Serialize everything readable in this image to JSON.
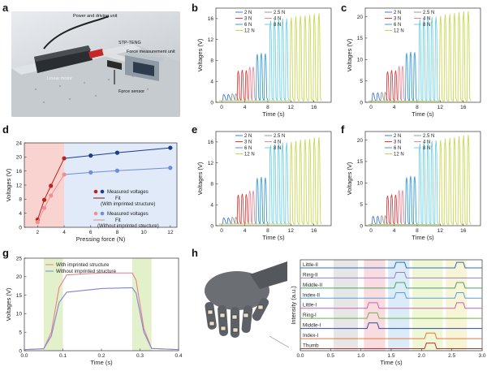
{
  "labels": {
    "a": "a",
    "b": "b",
    "c": "c",
    "d": "d",
    "e": "e",
    "f": "f",
    "g": "g",
    "h": "h"
  },
  "panel_a": {
    "power_label": "Power and driving unit",
    "motor_label": "Linear motor",
    "sensor_label": "STP-TENG",
    "measure_label": "Force measurement unit",
    "force_label": "Force sensor"
  },
  "colors": {
    "2N": "#4a7bd0",
    "2.5N": "#999999",
    "3N": "#d84040",
    "4N": "#e58a9c",
    "6N": "#3a9bd5",
    "8N": "#6fd0e6",
    "12N": "#c8d850"
  },
  "legend_b": [
    "2 N",
    "2.5 N",
    "3 N",
    "4 N",
    "6 N",
    "8 N",
    "12 N"
  ],
  "legend_g": [
    "With imprinted structure",
    "Without imprinted structure"
  ],
  "legend_d": [
    "Measured voltages",
    "Fit",
    "(With imprinted structure)",
    "Measured voltages",
    "Fit",
    "(Without imprinted structure)"
  ],
  "chart_data": [
    {
      "id": "b",
      "type": "line",
      "title": "",
      "xlabel": "Time (s)",
      "ylabel": "Voltages (V)",
      "xlim": [
        -1,
        19
      ],
      "ylim": [
        0,
        18
      ],
      "xticks": [
        0,
        4,
        8,
        12,
        16
      ],
      "yticks": [
        0,
        4,
        8,
        12,
        16
      ],
      "series": [
        {
          "name": "2 N",
          "color": "#4a7bd0",
          "x": [
            0.5,
            1.3
          ],
          "y": [
            1.5,
            1.5
          ]
        },
        {
          "name": "2.5 N",
          "color": "#999999",
          "x": [
            2.0,
            2.6
          ],
          "y": [
            1.6,
            1.6
          ]
        },
        {
          "name": "3 N",
          "color": "#d84040",
          "x": [
            3.0,
            3.7,
            4.4
          ],
          "y": [
            6,
            6.2,
            6.1
          ]
        },
        {
          "name": "4 N",
          "color": "#e58a9c",
          "x": [
            5.0,
            5.6
          ],
          "y": [
            6.8,
            6.8
          ]
        },
        {
          "name": "6 N",
          "color": "#3a9bd5",
          "x": [
            6.3,
            7.0,
            7.7
          ],
          "y": [
            9.2,
            9.4,
            9.3
          ]
        },
        {
          "name": "8 N",
          "color": "#6fd0e6",
          "x": [
            8.6,
            9.3,
            10.0,
            10.7,
            11.4
          ],
          "y": [
            15.6,
            15.8,
            15.9,
            16.0,
            16.0
          ]
        },
        {
          "name": "12 N",
          "color": "#c8d850",
          "x": [
            12.2,
            13.0,
            13.8,
            14.6,
            15.4,
            16.2,
            17.0
          ],
          "y": [
            16.2,
            16.4,
            16.5,
            16.6,
            16.7,
            16.9,
            17.0
          ]
        }
      ]
    },
    {
      "id": "c",
      "type": "line",
      "title": "",
      "xlabel": "Time (s)",
      "ylabel": "Voltages (V)",
      "xlim": [
        -1,
        19
      ],
      "ylim": [
        0,
        22
      ],
      "xticks": [
        0,
        4,
        8,
        12,
        16
      ],
      "yticks": [
        0,
        5,
        10,
        15,
        20
      ],
      "series": [
        {
          "name": "2 N",
          "color": "#4a7bd0",
          "x": [
            0.5,
            1.3
          ],
          "y": [
            2.2,
            2.2
          ]
        },
        {
          "name": "2.5 N",
          "color": "#999999",
          "x": [
            2.0,
            2.6
          ],
          "y": [
            2.3,
            2.3
          ]
        },
        {
          "name": "3 N",
          "color": "#d84040",
          "x": [
            3.0,
            3.7,
            4.4
          ],
          "y": [
            7.2,
            7.5,
            7.4
          ]
        },
        {
          "name": "4 N",
          "color": "#e58a9c",
          "x": [
            5.0,
            5.6
          ],
          "y": [
            8.5,
            8.5
          ]
        },
        {
          "name": "6 N",
          "color": "#3a9bd5",
          "x": [
            6.3,
            7.0,
            7.7
          ],
          "y": [
            11.5,
            11.8,
            11.7
          ]
        },
        {
          "name": "8 N",
          "color": "#6fd0e6",
          "x": [
            8.6,
            9.3,
            10.0,
            10.7,
            11.4
          ],
          "y": [
            19.4,
            19.6,
            19.8,
            19.9,
            20.0
          ]
        },
        {
          "name": "12 N",
          "color": "#c8d850",
          "x": [
            12.2,
            13.0,
            13.8,
            14.6,
            15.4,
            16.2,
            17.0
          ],
          "y": [
            20.2,
            20.5,
            20.6,
            20.8,
            21.0,
            21.2,
            21.3
          ]
        }
      ]
    },
    {
      "id": "e",
      "type": "line",
      "title": "",
      "xlabel": "Time (s)",
      "ylabel": "Voltages (V)",
      "xlim": [
        -1,
        19
      ],
      "ylim": [
        0,
        18
      ],
      "xticks": [
        0,
        4,
        8,
        12,
        16
      ],
      "yticks": [
        0,
        4,
        8,
        12,
        16
      ],
      "series": [
        {
          "name": "2 N",
          "color": "#4a7bd0",
          "x": [
            0.5,
            1.3
          ],
          "y": [
            1.5,
            1.5
          ]
        },
        {
          "name": "2.5 N",
          "color": "#999999",
          "x": [
            2.0,
            2.6
          ],
          "y": [
            1.6,
            1.6
          ]
        },
        {
          "name": "3 N",
          "color": "#d84040",
          "x": [
            3.0,
            3.7,
            4.4
          ],
          "y": [
            5.9,
            6.1,
            6.0
          ]
        },
        {
          "name": "4 N",
          "color": "#e58a9c",
          "x": [
            5.0,
            5.6
          ],
          "y": [
            6.7,
            6.7
          ]
        },
        {
          "name": "6 N",
          "color": "#3a9bd5",
          "x": [
            6.3,
            7.0,
            7.7
          ],
          "y": [
            9.1,
            9.3,
            9.2
          ]
        },
        {
          "name": "8 N",
          "color": "#6fd0e6",
          "x": [
            8.6,
            9.3,
            10.0,
            10.7,
            11.4
          ],
          "y": [
            15.4,
            15.6,
            15.8,
            15.9,
            15.9
          ]
        },
        {
          "name": "12 N",
          "color": "#c8d850",
          "x": [
            12.2,
            13.0,
            13.8,
            14.6,
            15.4,
            16.2,
            17.0
          ],
          "y": [
            16.0,
            16.2,
            16.4,
            16.5,
            16.6,
            16.8,
            16.9
          ]
        }
      ]
    },
    {
      "id": "f",
      "type": "line",
      "title": "",
      "xlabel": "Time (s)",
      "ylabel": "Voltages (V)",
      "xlim": [
        -1,
        19
      ],
      "ylim": [
        0,
        22
      ],
      "xticks": [
        0,
        4,
        8,
        12,
        16
      ],
      "yticks": [
        0,
        5,
        10,
        15,
        20
      ],
      "series": [
        {
          "name": "2 N",
          "color": "#4a7bd0",
          "x": [
            0.5,
            1.3
          ],
          "y": [
            2.2,
            2.2
          ]
        },
        {
          "name": "2.5 N",
          "color": "#999999",
          "x": [
            2.0,
            2.6
          ],
          "y": [
            2.3,
            2.3
          ]
        },
        {
          "name": "3 N",
          "color": "#d84040",
          "x": [
            3.0,
            3.7,
            4.4
          ],
          "y": [
            7.0,
            7.3,
            7.2
          ]
        },
        {
          "name": "4 N",
          "color": "#e58a9c",
          "x": [
            5.0,
            5.6
          ],
          "y": [
            8.3,
            8.3
          ]
        },
        {
          "name": "6 N",
          "color": "#3a9bd5",
          "x": [
            6.3,
            7.0,
            7.7
          ],
          "y": [
            11.3,
            11.6,
            11.5
          ]
        },
        {
          "name": "8 N",
          "color": "#6fd0e6",
          "x": [
            8.6,
            9.3,
            10.0,
            10.7,
            11.4
          ],
          "y": [
            19.2,
            19.4,
            19.6,
            19.8,
            19.9
          ]
        },
        {
          "name": "12 N",
          "color": "#c8d850",
          "x": [
            12.2,
            13.0,
            13.8,
            14.6,
            15.4,
            16.2,
            17.0
          ],
          "y": [
            20.0,
            20.3,
            20.5,
            20.7,
            20.9,
            21.1,
            21.2
          ]
        }
      ]
    },
    {
      "id": "d",
      "type": "scatter",
      "title": "",
      "xlabel": "Pressing force (N)",
      "ylabel": "Voltages (V)",
      "xlim": [
        1,
        12.5
      ],
      "ylim": [
        0,
        24
      ],
      "xticks": [
        2,
        4,
        6,
        8,
        10,
        12
      ],
      "yticks": [
        0,
        4,
        8,
        12,
        16,
        20,
        24
      ],
      "shade": [
        [
          1,
          4,
          "#f7c4c0"
        ],
        [
          4,
          12.5,
          "#d6e3f5"
        ]
      ],
      "series": [
        {
          "name": "Measured voltages (With imprinted structure)",
          "color_lo": "#c0201e",
          "color_hi": "#1e3c8c",
          "x": [
            2,
            2.5,
            3,
            4,
            6,
            8,
            12
          ],
          "y": [
            2.2,
            7.8,
            11.8,
            19.6,
            20.4,
            21.2,
            22.6
          ]
        },
        {
          "name": "Measured voltages (Without imprinted structure)",
          "color_lo": "#ef8f8f",
          "color_hi": "#6f8ed8",
          "x": [
            2,
            2.5,
            3,
            4,
            6,
            8,
            12
          ],
          "y": [
            1.5,
            5.5,
            9.0,
            15.0,
            15.6,
            16.1,
            16.9
          ]
        }
      ]
    },
    {
      "id": "g",
      "type": "line",
      "title": "",
      "xlabel": "Time (s)",
      "ylabel": "Voltages (V)",
      "xlim": [
        0,
        0.4
      ],
      "ylim": [
        0,
        25
      ],
      "xticks": [
        0.0,
        0.1,
        0.2,
        0.3,
        0.4
      ],
      "yticks": [
        0,
        5,
        10,
        15,
        20,
        25
      ],
      "shade": [
        [
          0.05,
          0.1,
          "#d9ecb8"
        ],
        [
          0.28,
          0.33,
          "#d9ecb8"
        ]
      ],
      "series": [
        {
          "name": "With imprinted structure",
          "color": "#e8818a",
          "x": [
            0,
            0.05,
            0.07,
            0.09,
            0.11,
            0.2,
            0.28,
            0.29,
            0.31,
            0.33,
            0.4
          ],
          "y": [
            0.3,
            0.5,
            5,
            17,
            20.5,
            21,
            21,
            19,
            6,
            0.6,
            0.3
          ]
        },
        {
          "name": "Without imprinted structure",
          "color": "#7d86d8",
          "x": [
            0,
            0.05,
            0.07,
            0.09,
            0.11,
            0.2,
            0.28,
            0.29,
            0.31,
            0.33,
            0.4
          ],
          "y": [
            0.3,
            0.5,
            4,
            13,
            15.8,
            16.8,
            17,
            15.5,
            5,
            0.6,
            0.3
          ]
        }
      ]
    },
    {
      "id": "h",
      "type": "line",
      "title": "",
      "xlabel": "Time (s)",
      "ylabel": "Intensity (a.u.)",
      "xlim": [
        0,
        3.0
      ],
      "xticks": [
        0.0,
        0.5,
        1.0,
        1.5,
        2.0,
        2.5,
        3.0
      ],
      "shade": [
        [
          0.55,
          0.95,
          "#dddddd"
        ],
        [
          1.05,
          1.4,
          "#f7d0d4"
        ],
        [
          1.45,
          1.8,
          "#cfe6f5"
        ],
        [
          1.85,
          2.35,
          "#e9f4c8"
        ],
        [
          2.4,
          2.75,
          "#f5f0c8"
        ]
      ],
      "series": [
        {
          "name": "Little-II",
          "color": "#2f6fb8",
          "pulses": [
            [
              1.55,
              1.75
            ],
            [
              2.55,
              2.72
            ]
          ]
        },
        {
          "name": "Ring-II",
          "color": "#9e7fc5",
          "pulses": [
            [
              1.55,
              1.75
            ]
          ]
        },
        {
          "name": "Middle-II",
          "color": "#4aa06a",
          "pulses": [
            [
              1.55,
              1.75
            ],
            [
              2.55,
              2.72
            ]
          ]
        },
        {
          "name": "Index-II",
          "color": "#58a0d8",
          "pulses": [
            [
              1.55,
              1.75
            ],
            [
              2.55,
              2.72
            ]
          ]
        },
        {
          "name": "Little-I",
          "color": "#d061a8",
          "pulses": [
            [
              1.1,
              1.3
            ],
            [
              2.55,
              2.72
            ]
          ]
        },
        {
          "name": "Ring-I",
          "color": "#6db24a",
          "pulses": [
            [
              1.1,
              1.3
            ]
          ]
        },
        {
          "name": "Middle-I",
          "color": "#2b4d9a",
          "pulses": [
            [
              1.1,
              1.3
            ]
          ]
        },
        {
          "name": "Index-I",
          "color": "#e07a40",
          "pulses": [
            [
              2.05,
              2.25
            ]
          ]
        },
        {
          "name": "Thumb",
          "color": "#c23030",
          "pulses": [
            [
              2.05,
              2.25
            ]
          ]
        }
      ]
    }
  ]
}
